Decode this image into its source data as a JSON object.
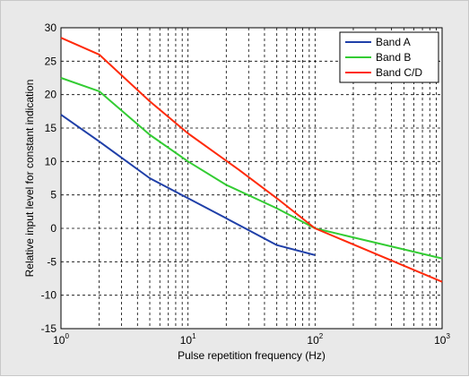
{
  "chart_data": {
    "type": "line",
    "title": "",
    "xlabel": "Pulse repetition frequency (Hz)",
    "ylabel": "Relative input level for constant indication",
    "xscale": "log",
    "xlim": [
      1,
      1000
    ],
    "ylim": [
      -15,
      30
    ],
    "yticks": [
      -15,
      -10,
      -5,
      0,
      5,
      10,
      15,
      20,
      25,
      30
    ],
    "xtick_base": "10",
    "xtick_exponents": [
      "0",
      "1",
      "2",
      "3"
    ],
    "grid": true,
    "legend_position": "top-right",
    "series": [
      {
        "name": "Band A",
        "color": "#1f3fa8",
        "x": [
          1,
          2,
          5,
          10,
          20,
          50,
          100
        ],
        "y": [
          17,
          13,
          7.5,
          4.5,
          1.5,
          -2.5,
          -4
        ]
      },
      {
        "name": "Band B",
        "color": "#33cc33",
        "x": [
          1,
          2,
          5,
          10,
          20,
          50,
          100,
          1000
        ],
        "y": [
          22.5,
          20.5,
          14,
          10,
          6.5,
          3,
          0,
          -4.5
        ]
      },
      {
        "name": "Band C/D",
        "color": "#ff2a0a",
        "x": [
          1,
          2,
          5,
          10,
          25,
          50,
          100,
          1000
        ],
        "y": [
          28.5,
          26,
          19,
          14.2,
          8.8,
          4.5,
          0,
          -8
        ]
      }
    ]
  }
}
